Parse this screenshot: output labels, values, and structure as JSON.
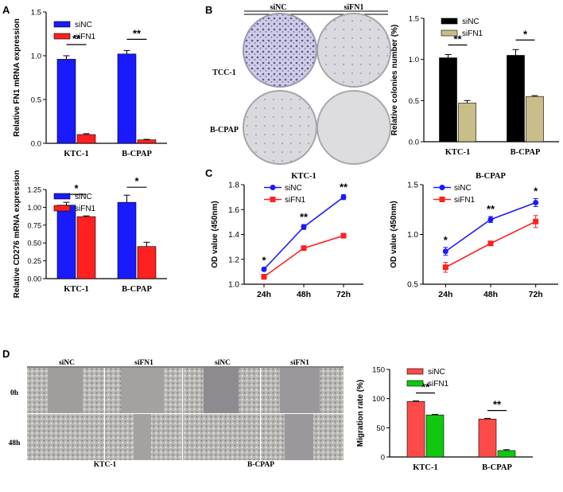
{
  "panel_letters": {
    "a": "A",
    "b": "B",
    "c": "C",
    "d": "D"
  },
  "colors": {
    "siNC_blue": "#1a1aff",
    "siFN1_red": "#ff2020",
    "black_bar": "#000000",
    "khaki_bar": "#c9bd8a",
    "line_blue": "#1a1aff",
    "line_red": "#ff2020",
    "mig_red": "#ff4a4a",
    "mig_green": "#10c810"
  },
  "colony_photos": {
    "col_headers": [
      "siNC",
      "siFN1"
    ],
    "row_labels": [
      "TCC-1",
      "B-CPAP"
    ]
  },
  "wound_photos": {
    "col_headers": [
      "siNC",
      "siFN1",
      "siNC",
      "siFN1"
    ],
    "row_labels": [
      "0h",
      "48h"
    ],
    "group_labels": [
      "KTC-1",
      "B-CPAP"
    ]
  },
  "chart_data": [
    {
      "id": "fn1_mrna",
      "type": "bar",
      "categories": [
        "KTC-1",
        "B-CPAP"
      ],
      "series": [
        {
          "name": "siNC",
          "values": [
            0.96,
            1.02
          ],
          "errors": [
            0.04,
            0.04
          ]
        },
        {
          "name": "siFN1",
          "values": [
            0.1,
            0.04
          ],
          "errors": [
            0.01,
            0.005
          ]
        }
      ],
      "ylabel": "Relative FN1 mRNA expression",
      "ylim": [
        0,
        1.5
      ],
      "yticks": [
        "0.0",
        "0.5",
        "1.0",
        "1.5"
      ],
      "significance": [
        "**",
        "**"
      ]
    },
    {
      "id": "cd276_mrna",
      "type": "bar",
      "categories": [
        "KTC-1",
        "B-CPAP"
      ],
      "series": [
        {
          "name": "siNC",
          "values": [
            1.03,
            1.07
          ],
          "errors": [
            0.04,
            0.1
          ]
        },
        {
          "name": "siFN1",
          "values": [
            0.87,
            0.45
          ],
          "errors": [
            0.01,
            0.06
          ]
        }
      ],
      "ylabel": "Relative CD276 mRNA expression",
      "ylim": [
        0,
        1.25
      ],
      "yticks": [
        "0.00",
        "0.25",
        "0.50",
        "0.75",
        "1.00",
        "1.25"
      ],
      "significance": [
        "*",
        "*"
      ]
    },
    {
      "id": "colonies",
      "type": "bar",
      "categories": [
        "KTC-1",
        "B-CPAP"
      ],
      "series": [
        {
          "name": "siNC",
          "values": [
            1.02,
            1.05
          ],
          "errors": [
            0.04,
            0.07
          ]
        },
        {
          "name": "siFN1",
          "values": [
            0.47,
            0.55
          ],
          "errors": [
            0.03,
            0.01
          ]
        }
      ],
      "ylabel": "Relative colonies number (%)",
      "ylim": [
        0,
        1.5
      ],
      "yticks": [
        "0.0",
        "0.5",
        "1.0",
        "1.5"
      ],
      "significance": [
        "**",
        "*"
      ]
    },
    {
      "id": "od_ktc1",
      "type": "line",
      "title": "KTC-1",
      "x": [
        "24h",
        "48h",
        "72h"
      ],
      "series": [
        {
          "name": "siNC",
          "values": [
            1.12,
            1.46,
            1.7
          ],
          "errors": [
            0.01,
            0.02,
            0.02
          ]
        },
        {
          "name": "siFN1",
          "values": [
            1.06,
            1.29,
            1.39
          ],
          "errors": [
            0.02,
            0.01,
            0.01
          ]
        }
      ],
      "ylabel": "OD value (450nm)",
      "ylim": [
        1.0,
        1.8
      ],
      "yticks": [
        "1.0",
        "1.2",
        "1.4",
        "1.6",
        "1.8"
      ],
      "significance": [
        "*",
        "**",
        "**"
      ]
    },
    {
      "id": "od_bcpap",
      "type": "line",
      "title": "B-CPAP",
      "x": [
        "24h",
        "48h",
        "72h"
      ],
      "series": [
        {
          "name": "siNC",
          "values": [
            0.83,
            1.15,
            1.32
          ],
          "errors": [
            0.04,
            0.03,
            0.04
          ]
        },
        {
          "name": "siFN1",
          "values": [
            0.67,
            0.91,
            1.13
          ],
          "errors": [
            0.05,
            0.01,
            0.06
          ]
        }
      ],
      "ylabel": "OD value (450nm)",
      "ylim": [
        0.5,
        1.5
      ],
      "yticks": [
        "0.5",
        "1.0",
        "1.5"
      ],
      "significance": [
        "*",
        "**",
        "*"
      ]
    },
    {
      "id": "migration",
      "type": "bar",
      "categories": [
        "KTC-1",
        "B-CPAP"
      ],
      "series": [
        {
          "name": "siNC",
          "values": [
            95,
            65
          ],
          "errors": [
            1,
            1
          ]
        },
        {
          "name": "siFN1",
          "values": [
            72,
            11
          ],
          "errors": [
            1,
            1.5
          ]
        }
      ],
      "ylabel": "Migration rate (%)",
      "ylim": [
        0,
        150
      ],
      "yticks": [
        "0",
        "50",
        "100",
        "150"
      ],
      "significance": [
        "**",
        "**"
      ]
    }
  ]
}
